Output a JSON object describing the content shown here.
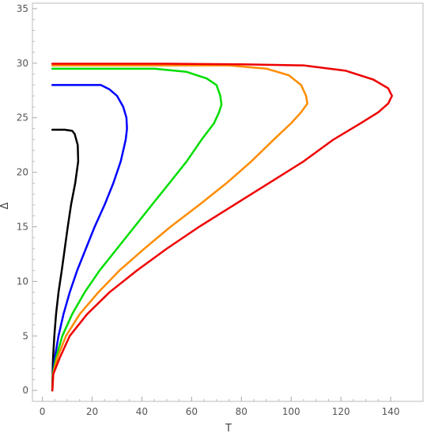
{
  "chart_data": {
    "type": "line",
    "title": "",
    "xlabel": "T",
    "ylabel": "Δ",
    "xlim": [
      -4,
      153
    ],
    "ylim": [
      -1,
      35.5
    ],
    "xticks": [
      0,
      20,
      40,
      60,
      80,
      100,
      120,
      140
    ],
    "yticks": [
      0,
      5,
      10,
      15,
      20,
      25,
      30,
      35
    ],
    "grid": false,
    "frame_color": "#bbbbbb",
    "series": [
      {
        "color": "#000000",
        "points": [
          [
            4.0,
            0.0
          ],
          [
            4.0,
            0.5
          ],
          [
            4.1,
            1.5
          ],
          [
            4.3,
            3.0
          ],
          [
            4.8,
            5.0
          ],
          [
            5.5,
            7.0
          ],
          [
            6.5,
            9.0
          ],
          [
            7.8,
            11.0
          ],
          [
            9.0,
            13.0
          ],
          [
            10.2,
            15.0
          ],
          [
            11.5,
            17.0
          ],
          [
            13.2,
            19.0
          ],
          [
            14.4,
            21.0
          ],
          [
            14.2,
            22.5
          ],
          [
            13.0,
            23.5
          ],
          [
            12.0,
            23.8
          ],
          [
            9.0,
            23.9
          ],
          [
            4.0,
            23.9
          ]
        ]
      },
      {
        "color": "#0000ff",
        "points": [
          [
            4.0,
            0.0
          ],
          [
            4.2,
            1.5
          ],
          [
            5.0,
            3.0
          ],
          [
            6.5,
            5.0
          ],
          [
            8.5,
            7.0
          ],
          [
            11.0,
            9.0
          ],
          [
            14.0,
            11.0
          ],
          [
            17.5,
            13.0
          ],
          [
            21.0,
            15.0
          ],
          [
            25.0,
            17.0
          ],
          [
            28.5,
            19.0
          ],
          [
            31.5,
            21.0
          ],
          [
            33.5,
            23.0
          ],
          [
            34.0,
            24.0
          ],
          [
            33.8,
            25.0
          ],
          [
            32.5,
            26.0
          ],
          [
            30.0,
            27.0
          ],
          [
            27.0,
            27.6
          ],
          [
            23.5,
            28.0
          ],
          [
            18.0,
            28.0
          ],
          [
            10.0,
            28.0
          ],
          [
            4.0,
            28.0
          ]
        ]
      },
      {
        "color": "#00dd00",
        "points": [
          [
            4.0,
            0.0
          ],
          [
            4.2,
            1.5
          ],
          [
            5.5,
            3.0
          ],
          [
            8.0,
            5.0
          ],
          [
            12.0,
            7.0
          ],
          [
            17.0,
            9.0
          ],
          [
            23.0,
            11.0
          ],
          [
            30.0,
            13.0
          ],
          [
            37.0,
            15.0
          ],
          [
            44.0,
            17.0
          ],
          [
            51.0,
            19.0
          ],
          [
            58.0,
            21.0
          ],
          [
            64.0,
            23.0
          ],
          [
            69.0,
            24.5
          ],
          [
            71.0,
            25.5
          ],
          [
            72.0,
            26.2
          ],
          [
            71.5,
            27.0
          ],
          [
            70.0,
            28.0
          ],
          [
            66.0,
            28.6
          ],
          [
            58.0,
            29.2
          ],
          [
            45.0,
            29.5
          ],
          [
            25.0,
            29.5
          ],
          [
            4.0,
            29.5
          ]
        ]
      },
      {
        "color": "#ff8c00",
        "points": [
          [
            4.0,
            0.0
          ],
          [
            4.3,
            1.5
          ],
          [
            6.0,
            3.0
          ],
          [
            9.5,
            5.0
          ],
          [
            15.0,
            7.0
          ],
          [
            22.5,
            9.0
          ],
          [
            31.0,
            11.0
          ],
          [
            41.0,
            13.0
          ],
          [
            51.5,
            15.0
          ],
          [
            63.0,
            17.0
          ],
          [
            74.0,
            19.0
          ],
          [
            84.0,
            21.0
          ],
          [
            93.0,
            23.0
          ],
          [
            100.0,
            24.5
          ],
          [
            104.0,
            25.5
          ],
          [
            106.5,
            26.3
          ],
          [
            106.0,
            27.0
          ],
          [
            104.0,
            28.0
          ],
          [
            99.0,
            28.9
          ],
          [
            90.0,
            29.5
          ],
          [
            75.0,
            29.8
          ],
          [
            50.0,
            29.8
          ],
          [
            25.0,
            29.8
          ],
          [
            4.0,
            29.8
          ]
        ]
      },
      {
        "color": "#ee0000",
        "points": [
          [
            4.0,
            0.0
          ],
          [
            4.4,
            1.5
          ],
          [
            7.0,
            3.0
          ],
          [
            11.0,
            5.0
          ],
          [
            18.0,
            7.0
          ],
          [
            27.0,
            9.0
          ],
          [
            38.0,
            11.0
          ],
          [
            50.0,
            13.0
          ],
          [
            63.0,
            15.0
          ],
          [
            77.0,
            17.0
          ],
          [
            91.0,
            19.0
          ],
          [
            105.0,
            21.0
          ],
          [
            117.0,
            23.0
          ],
          [
            128.0,
            24.5
          ],
          [
            135.0,
            25.5
          ],
          [
            139.0,
            26.3
          ],
          [
            140.5,
            27.0
          ],
          [
            139.0,
            27.7
          ],
          [
            133.0,
            28.5
          ],
          [
            122.0,
            29.3
          ],
          [
            105.0,
            29.8
          ],
          [
            80.0,
            29.9
          ],
          [
            50.0,
            29.95
          ],
          [
            25.0,
            29.95
          ],
          [
            4.0,
            29.95
          ]
        ]
      }
    ]
  }
}
